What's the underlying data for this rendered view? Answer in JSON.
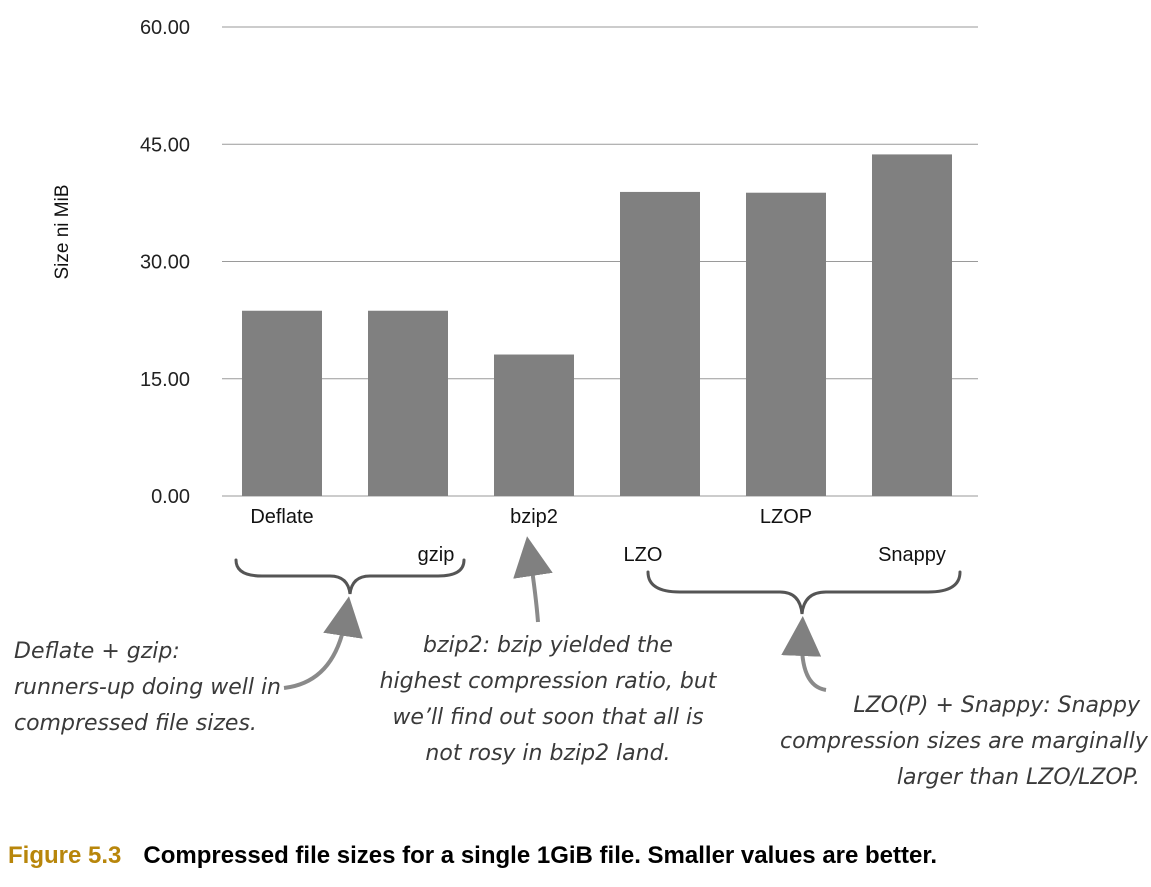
{
  "chart_data": {
    "type": "bar",
    "categories": [
      "Deflate",
      "gzip",
      "bzip2",
      "LZO",
      "LZOP",
      "Snappy"
    ],
    "values": [
      23.7,
      23.7,
      18.1,
      38.9,
      38.8,
      43.7
    ],
    "ylabel": "Size ni MiB",
    "ylim": [
      0,
      60
    ],
    "yticks": [
      "0.00",
      "15.00",
      "30.00",
      "45.00",
      "60.00"
    ],
    "grid": true,
    "bar_color": "#808080"
  },
  "annotations": {
    "deflate_gzip": [
      "Deflate + gzip:",
      "runners-up doing well in",
      "compressed file sizes."
    ],
    "bzip2": [
      "bzip2: bzip yielded the",
      "highest compression ratio, but",
      "we’ll find out soon that all is",
      "not rosy in bzip2 land."
    ],
    "lzo_snappy": [
      "LZO(P) + Snappy: Snappy",
      "compression sizes are marginally",
      "larger than LZO/LZOP."
    ]
  },
  "caption": {
    "figure_number": "Figure 5.3",
    "text": "Compressed file sizes for a single 1GiB file. Smaller values are better."
  }
}
